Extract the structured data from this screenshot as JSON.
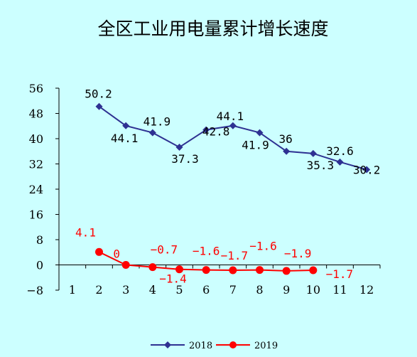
{
  "chart_data": {
    "type": "line",
    "title": "全区工业用电量累计增长速度",
    "xlabel": "",
    "ylabel": "",
    "categories": [
      "1",
      "2",
      "3",
      "4",
      "5",
      "6",
      "7",
      "8",
      "9",
      "10",
      "11",
      "12"
    ],
    "y_ticks": [
      "56",
      "48",
      "40",
      "32",
      "24",
      "16",
      "8",
      "0",
      "-8"
    ],
    "ylim": [
      -8,
      56
    ],
    "grid": false,
    "legend_position": "bottom",
    "series": [
      {
        "name": "2018",
        "color": "#2e3192",
        "marker": "diamond",
        "x": [
          2,
          3,
          4,
          5,
          6,
          7,
          8,
          9,
          10,
          11,
          12
        ],
        "values": [
          50.2,
          44.1,
          41.9,
          37.3,
          42.8,
          44.1,
          41.9,
          36,
          35.3,
          32.6,
          30.2
        ],
        "labels": [
          "50.2",
          "44.1",
          "41.9",
          "37.3",
          "42.8",
          "44.1",
          "41.9",
          "36",
          "35.3",
          "32.6",
          "30.2"
        ]
      },
      {
        "name": "2019",
        "color": "#ff0000",
        "marker": "circle",
        "x": [
          2,
          3,
          4,
          5,
          6,
          7,
          8,
          9,
          10
        ],
        "values": [
          4.1,
          0,
          -0.7,
          -1.4,
          -1.6,
          -1.7,
          -1.6,
          -1.9,
          -1.7
        ],
        "labels": [
          "4.1",
          "0",
          "-0.7",
          "-1.4",
          "-1.6",
          "-1.7",
          "-1.6",
          "-1.9",
          "-1.7"
        ]
      }
    ]
  }
}
